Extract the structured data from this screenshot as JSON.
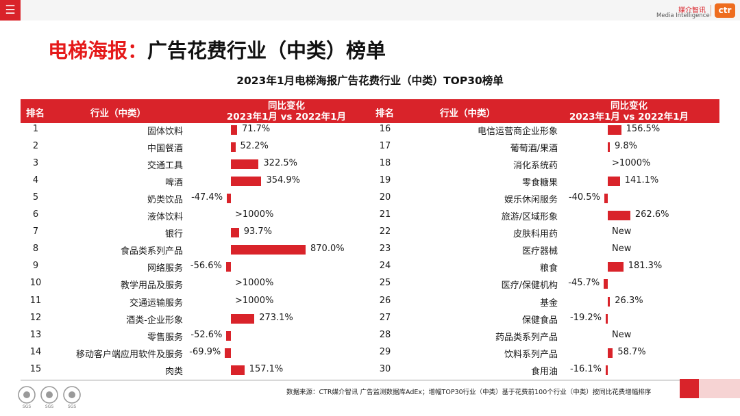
{
  "header": {
    "menu_icon": "hamburger-menu-icon",
    "logo_cn": "媒介智讯",
    "logo_en": "Media Intelligence",
    "logo_mark": "ctr"
  },
  "title": {
    "highlight": "电梯海报：",
    "rest": "广告花费行业（中类）榜单"
  },
  "chart_data": {
    "type": "bar",
    "title": "2023年1月电梯海报广告花费行业（中类）TOP30榜单",
    "columns": {
      "rank": "排名",
      "industry": "行业（中类）",
      "change_line1": "同比变化",
      "change_line2": "2023年1月 vs 2022年1月"
    },
    "rows": [
      {
        "rank": 1,
        "industry": "固体饮料",
        "value": 71.7,
        "label": "71.7%"
      },
      {
        "rank": 2,
        "industry": "中国餐酒",
        "value": 52.2,
        "label": "52.2%"
      },
      {
        "rank": 3,
        "industry": "交通工具",
        "value": 322.5,
        "label": "322.5%"
      },
      {
        "rank": 4,
        "industry": "啤酒",
        "value": 354.9,
        "label": "354.9%"
      },
      {
        "rank": 5,
        "industry": "奶类饮品",
        "value": -47.4,
        "label": "-47.4%"
      },
      {
        "rank": 6,
        "industry": "液体饮料",
        "value": null,
        "label": ">1000%"
      },
      {
        "rank": 7,
        "industry": "银行",
        "value": 93.7,
        "label": "93.7%"
      },
      {
        "rank": 8,
        "industry": "食品类系列产品",
        "value": 870.0,
        "label": "870.0%"
      },
      {
        "rank": 9,
        "industry": "网络服务",
        "value": -56.6,
        "label": "-56.6%"
      },
      {
        "rank": 10,
        "industry": "教学用品及服务",
        "value": null,
        "label": ">1000%"
      },
      {
        "rank": 11,
        "industry": "交通运输服务",
        "value": null,
        "label": ">1000%"
      },
      {
        "rank": 12,
        "industry": "酒类-企业形象",
        "value": 273.1,
        "label": "273.1%"
      },
      {
        "rank": 13,
        "industry": "零售服务",
        "value": -52.6,
        "label": "-52.6%"
      },
      {
        "rank": 14,
        "industry": "移动客户端应用软件及服务",
        "value": -69.9,
        "label": "-69.9%"
      },
      {
        "rank": 15,
        "industry": "肉类",
        "value": 157.1,
        "label": "157.1%"
      },
      {
        "rank": 16,
        "industry": "电信运营商企业形象",
        "value": 156.5,
        "label": "156.5%"
      },
      {
        "rank": 17,
        "industry": "葡萄酒/果酒",
        "value": 9.8,
        "label": "9.8%"
      },
      {
        "rank": 18,
        "industry": "消化系统药",
        "value": null,
        "label": ">1000%"
      },
      {
        "rank": 19,
        "industry": "零食糖果",
        "value": 141.1,
        "label": "141.1%"
      },
      {
        "rank": 20,
        "industry": "娱乐休闲服务",
        "value": -40.5,
        "label": "-40.5%"
      },
      {
        "rank": 21,
        "industry": "旅游/区域形象",
        "value": 262.6,
        "label": "262.6%"
      },
      {
        "rank": 22,
        "industry": "皮肤科用药",
        "value": null,
        "label": "New"
      },
      {
        "rank": 23,
        "industry": "医疗器械",
        "value": null,
        "label": "New"
      },
      {
        "rank": 24,
        "industry": "粮食",
        "value": 181.3,
        "label": "181.3%"
      },
      {
        "rank": 25,
        "industry": "医疗/保健机构",
        "value": -45.7,
        "label": "-45.7%"
      },
      {
        "rank": 26,
        "industry": "基金",
        "value": 26.3,
        "label": "26.3%"
      },
      {
        "rank": 27,
        "industry": "保健食品",
        "value": -19.2,
        "label": "-19.2%"
      },
      {
        "rank": 28,
        "industry": "药品类系列产品",
        "value": null,
        "label": "New"
      },
      {
        "rank": 29,
        "industry": "饮料系列产品",
        "value": 58.7,
        "label": "58.7%"
      },
      {
        "rank": 30,
        "industry": "食用油",
        "value": -16.1,
        "label": "-16.1%"
      }
    ],
    "bar_color": "#d9232a"
  },
  "footer": {
    "source": "数据来源：CTR媒介智讯 广告监测数据库AdEx；增幅TOP30行业（中类）基于花费前100个行业（中类）按同比花费增幅排序",
    "badges_icon": "sgs-certification-badges-icon",
    "badge_label": "SGS"
  }
}
